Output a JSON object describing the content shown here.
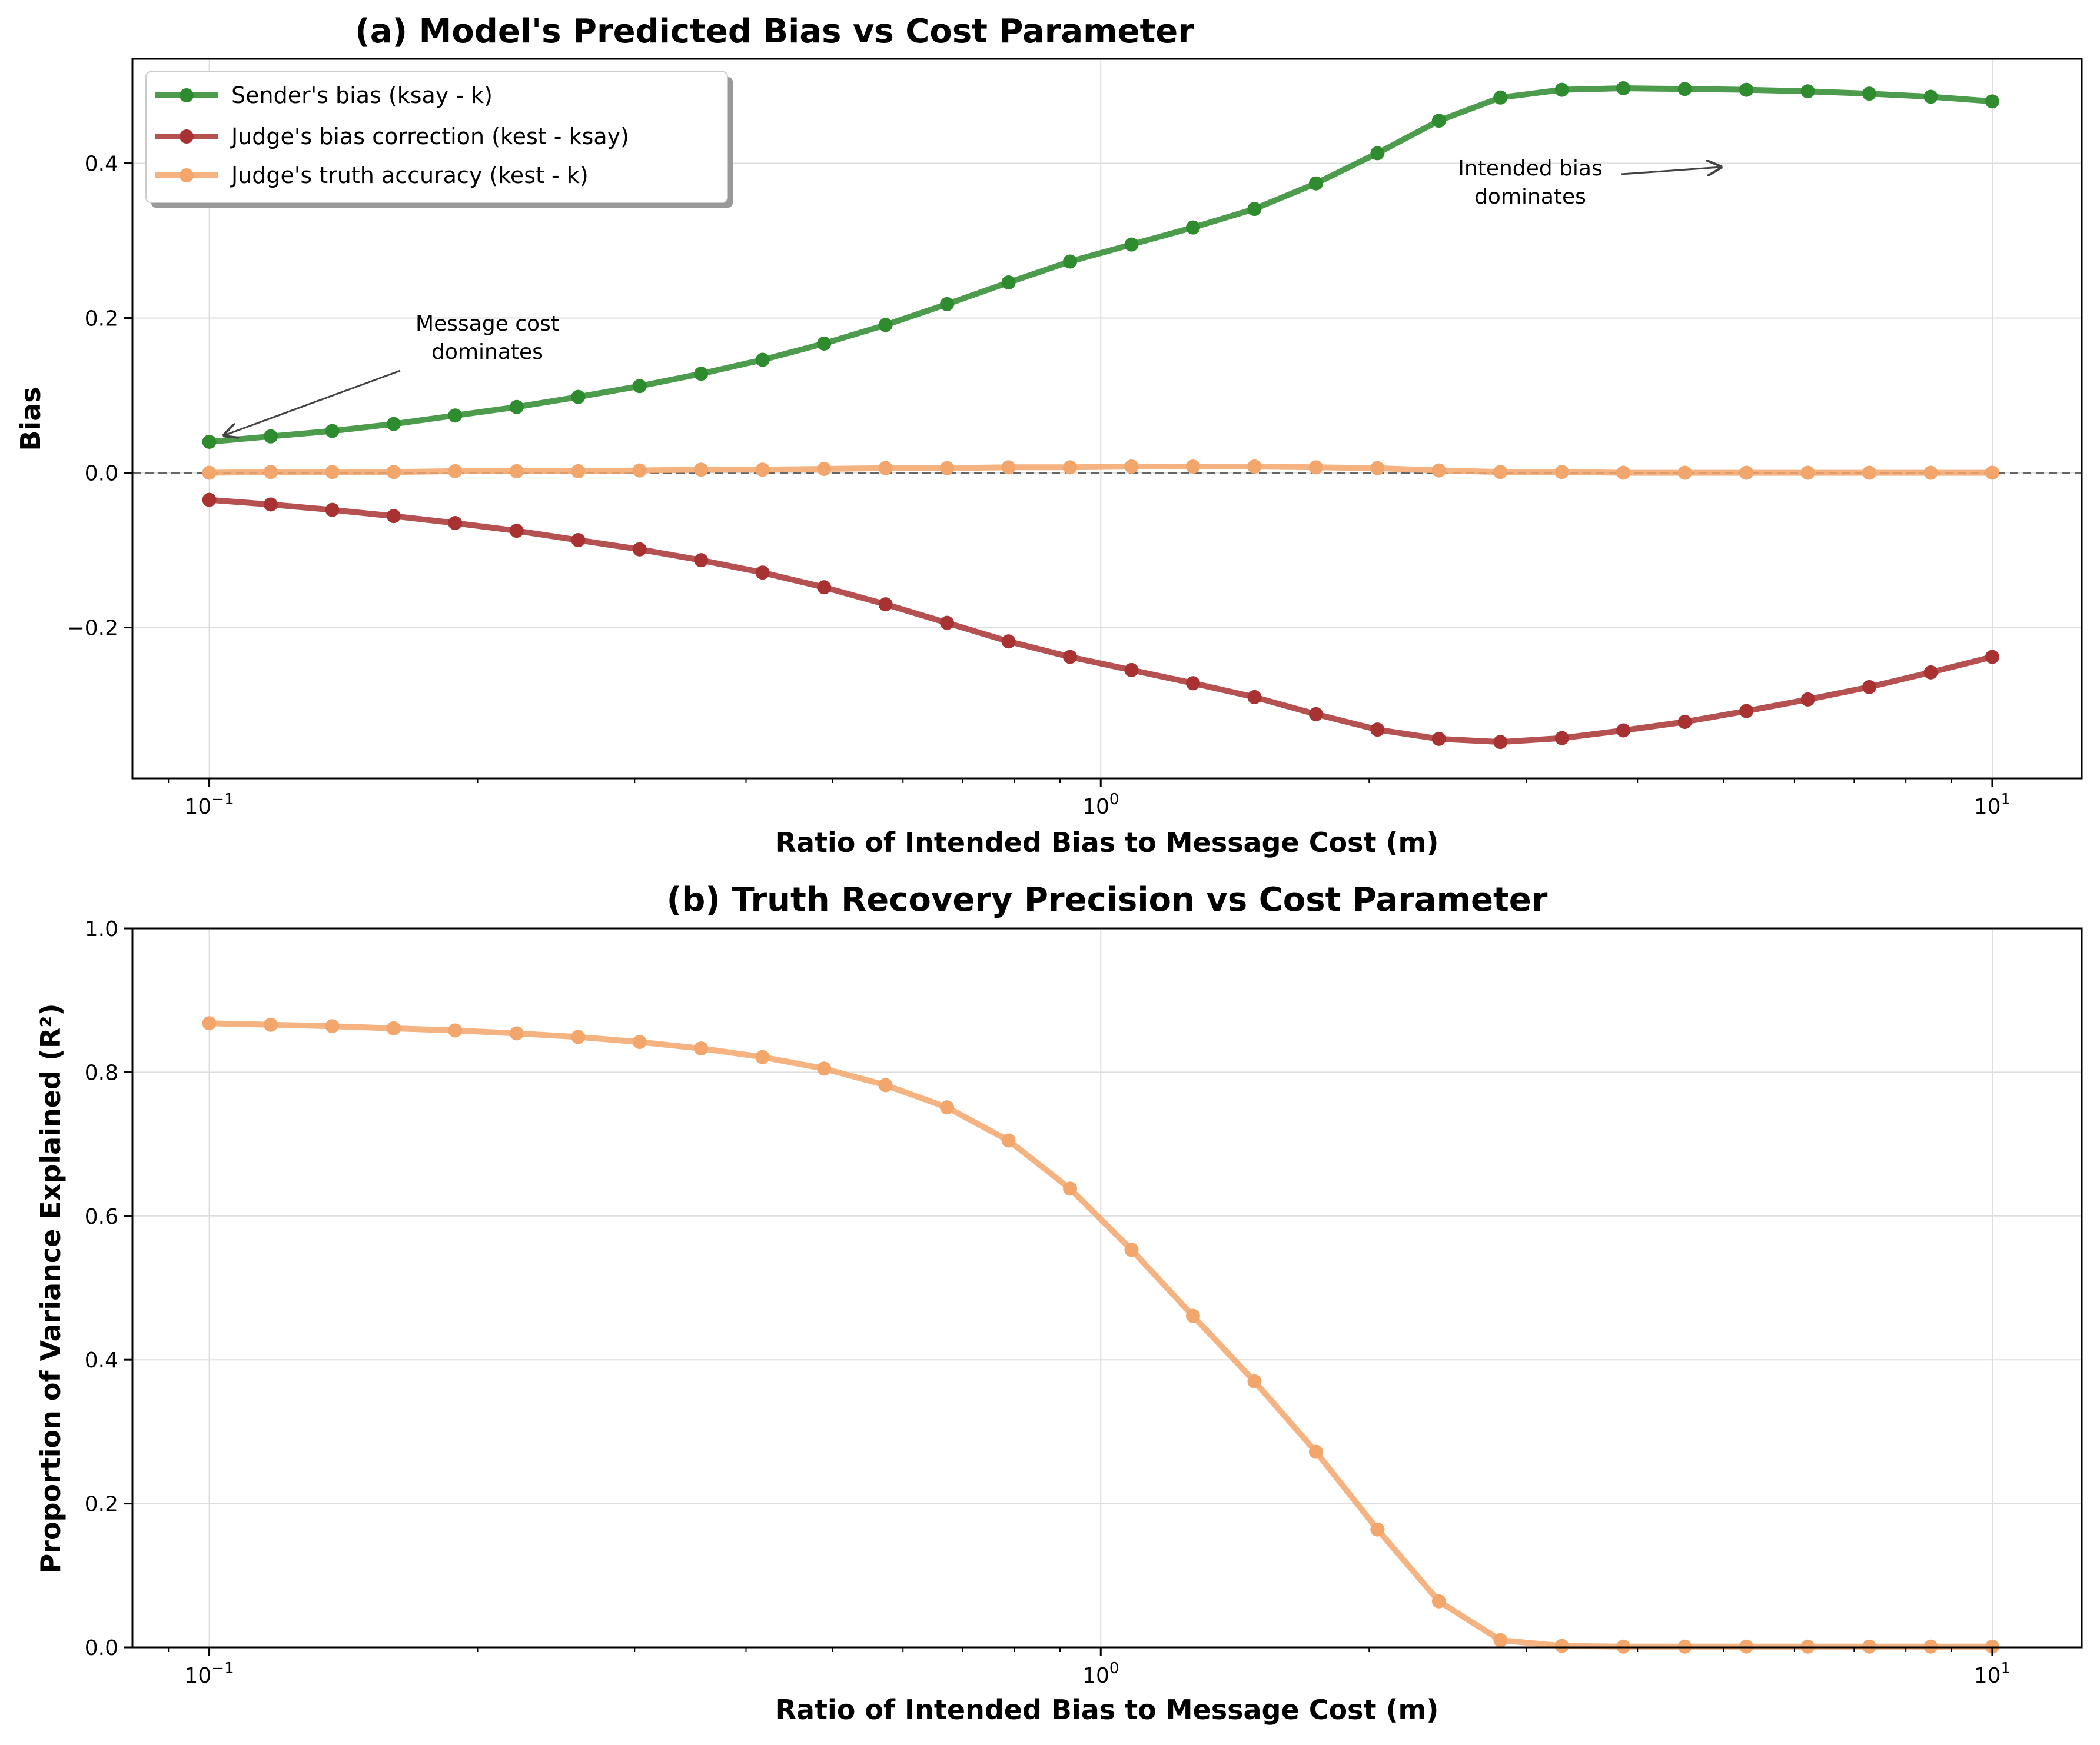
{
  "chart_data": [
    {
      "type": "line",
      "title": "(a) Model's Predicted Bias vs Cost Parameter",
      "xlabel": "Ratio of Intended Bias to Message Cost (m)",
      "ylabel": "Bias",
      "xscale": "log",
      "xlim": [
        0.082,
        12.6
      ],
      "ylim": [
        -0.395,
        0.535
      ],
      "yticks": [
        -0.2,
        0.0,
        0.2,
        0.4
      ],
      "ytick_labels": [
        "−0.2",
        "0.0",
        "0.2",
        "0.4"
      ],
      "xticks": [
        0.1,
        1,
        10
      ],
      "xtick_labels": [
        {
          "base": "10",
          "exp": "−1"
        },
        {
          "base": "10",
          "exp": "0"
        },
        {
          "base": "10",
          "exp": "1"
        }
      ],
      "grid": true,
      "legend": "top-left",
      "reference_line": {
        "y": 0,
        "style": "dashed",
        "color": "#666666"
      },
      "x": [
        0.1,
        0.1172,
        0.1374,
        0.161,
        0.1887,
        0.2212,
        0.2593,
        0.3039,
        0.3562,
        0.4175,
        0.4894,
        0.5736,
        0.6723,
        0.788,
        0.9237,
        1.0826,
        1.269,
        1.4874,
        1.7433,
        2.0434,
        2.395,
        2.8072,
        3.2903,
        3.8566,
        4.5204,
        5.2983,
        6.2102,
        7.279,
        8.5317,
        10.0
      ],
      "series": [
        {
          "name": "Sender's bias (ksay - k)",
          "color": "#2e8b2e",
          "values": [
            0.04,
            0.047,
            0.054,
            0.063,
            0.074,
            0.085,
            0.098,
            0.112,
            0.128,
            0.146,
            0.167,
            0.191,
            0.218,
            0.246,
            0.273,
            0.295,
            0.317,
            0.341,
            0.374,
            0.413,
            0.455,
            0.485,
            0.495,
            0.497,
            0.496,
            0.495,
            0.493,
            0.49,
            0.486,
            0.48
          ]
        },
        {
          "name": "Judge's bias correction (kest - ksay)",
          "color": "#a83232",
          "values": [
            -0.035,
            -0.041,
            -0.048,
            -0.056,
            -0.065,
            -0.075,
            -0.087,
            -0.099,
            -0.113,
            -0.129,
            -0.148,
            -0.17,
            -0.194,
            -0.218,
            -0.238,
            -0.255,
            -0.272,
            -0.29,
            -0.312,
            -0.332,
            -0.344,
            -0.348,
            -0.343,
            -0.333,
            -0.322,
            -0.308,
            -0.293,
            -0.277,
            -0.258,
            -0.238
          ]
        },
        {
          "name": "Judge's truth accuracy (kest - k)",
          "color": "#f2a66b",
          "values": [
            0.0,
            0.001,
            0.001,
            0.001,
            0.002,
            0.002,
            0.002,
            0.003,
            0.004,
            0.004,
            0.005,
            0.006,
            0.006,
            0.007,
            0.007,
            0.008,
            0.008,
            0.008,
            0.007,
            0.006,
            0.003,
            0.001,
            0.001,
            0.0,
            0.0,
            0.0,
            0.0,
            0.0,
            0.0,
            0.0
          ]
        }
      ],
      "annotations": [
        {
          "lines": [
            "Message cost",
            "dominates"
          ],
          "text_x": 0.3,
          "text_y": 0.175,
          "arrow_x": 0.1,
          "arrow_y": 0.05
        },
        {
          "lines": [
            "Intended bias",
            "dominates"
          ],
          "text_x": 2.9,
          "text_y": 0.378,
          "arrow_x": 5.0,
          "arrow_y": 0.4
        }
      ]
    },
    {
      "type": "line",
      "title": "(b) Truth Recovery Precision vs Cost Parameter",
      "xlabel": "Ratio of Intended Bias to Message Cost (m)",
      "ylabel": "Proportion of Variance Explained (R²)",
      "xscale": "log",
      "xlim": [
        0.082,
        12.6
      ],
      "ylim": [
        0.0,
        1.0
      ],
      "yticks": [
        0.0,
        0.2,
        0.4,
        0.6,
        0.8,
        1.0
      ],
      "ytick_labels": [
        "0.0",
        "0.2",
        "0.4",
        "0.6",
        "0.8",
        "1.0"
      ],
      "xticks": [
        0.1,
        1,
        10
      ],
      "xtick_labels": [
        {
          "base": "10",
          "exp": "−1"
        },
        {
          "base": "10",
          "exp": "0"
        },
        {
          "base": "10",
          "exp": "1"
        }
      ],
      "grid": true,
      "x": [
        0.1,
        0.1172,
        0.1374,
        0.161,
        0.1887,
        0.2212,
        0.2593,
        0.3039,
        0.3562,
        0.4175,
        0.4894,
        0.5736,
        0.6723,
        0.788,
        0.9237,
        1.0826,
        1.269,
        1.4874,
        1.7433,
        2.0434,
        2.395,
        2.8072,
        3.2903,
        3.8566,
        4.5204,
        5.2983,
        6.2102,
        7.279,
        8.5317,
        10.0
      ],
      "series": [
        {
          "color": "#f2a66b",
          "values": [
            0.868,
            0.866,
            0.864,
            0.861,
            0.858,
            0.854,
            0.849,
            0.842,
            0.833,
            0.821,
            0.805,
            0.782,
            0.751,
            0.705,
            0.638,
            0.553,
            0.461,
            0.37,
            0.272,
            0.164,
            0.064,
            0.01,
            0.002,
            0.001,
            0.001,
            0.001,
            0.001,
            0.001,
            0.001,
            0.001
          ]
        }
      ]
    }
  ]
}
